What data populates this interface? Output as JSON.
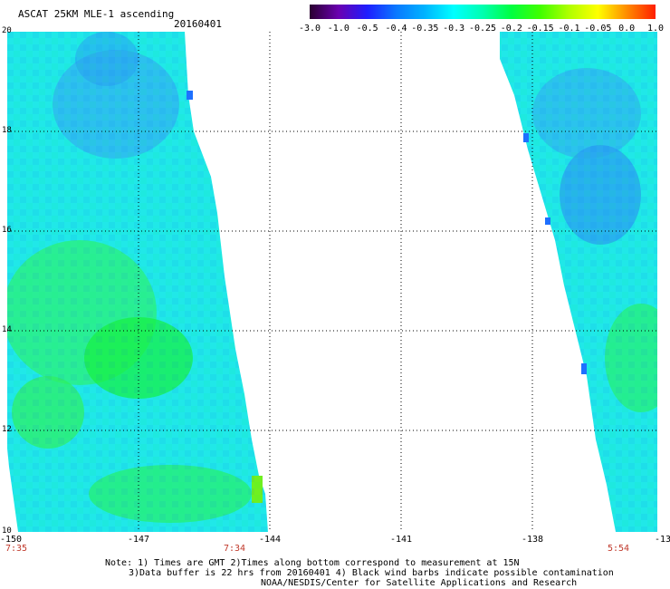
{
  "header": {
    "title": "ASCAT 25KM MLE-1 ascending",
    "date": "20160401"
  },
  "colorbar": {
    "labels": [
      "-3.0",
      "-1.0",
      "-0.5",
      "-0.4",
      "-0.35",
      "-0.3",
      "-0.25",
      "-0.2",
      "-0.15",
      "-0.1",
      "-0.05",
      "0.0",
      "1.0"
    ],
    "colors": [
      "#2a0030",
      "#6a00b0",
      "#1e1eff",
      "#0a78ff",
      "#00b4ff",
      "#00ffff",
      "#00ffb0",
      "#00ff40",
      "#40ff00",
      "#b0ff00",
      "#ffff00",
      "#ff8c00",
      "#ff1e00"
    ]
  },
  "axes": {
    "lat_labels": [
      "20",
      "18",
      "16",
      "14",
      "12",
      "10"
    ],
    "lon_labels": [
      "-150",
      "-147",
      "-144",
      "-141",
      "-138",
      "-13"
    ],
    "time_labels": [
      "7:35",
      "7:34",
      "5:54"
    ]
  },
  "notes": {
    "line1": "Note: 1) Times are GMT 2)Times along bottom correspond to measurement at 15N",
    "line2": "3)Data buffer is 22 hrs from 20160401 4) Black wind barbs indicate possible contamination",
    "line3": "NOAA/NESDIS/Center for Satellite Applications and Research"
  },
  "swaths": {
    "left_color": "#1ee6e6",
    "right_color": "#1ee6e6"
  }
}
